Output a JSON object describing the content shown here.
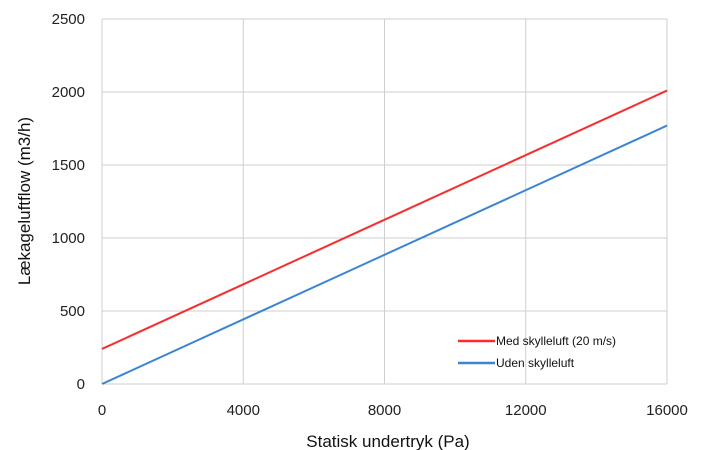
{
  "chart_data": {
    "type": "line",
    "xlabel": "Statisk undertryk (Pa)",
    "ylabel": "Lækageluftflow (m3/h)",
    "xlim": [
      0,
      16000
    ],
    "ylim": [
      0,
      2500
    ],
    "xticks": [
      0,
      4000,
      8000,
      12000,
      16000
    ],
    "yticks": [
      0,
      500,
      1000,
      1500,
      2000,
      2500
    ],
    "grid": true,
    "legend_position": "bottom-right",
    "series": [
      {
        "name": "Med skylleluft (20 m/s)",
        "color": "#ff2a2a",
        "x": [
          0,
          16000
        ],
        "y": [
          240,
          2010
        ]
      },
      {
        "name": "Uden skylleluft",
        "color": "#3a86d4",
        "x": [
          0,
          16000
        ],
        "y": [
          0,
          1770
        ]
      }
    ]
  }
}
